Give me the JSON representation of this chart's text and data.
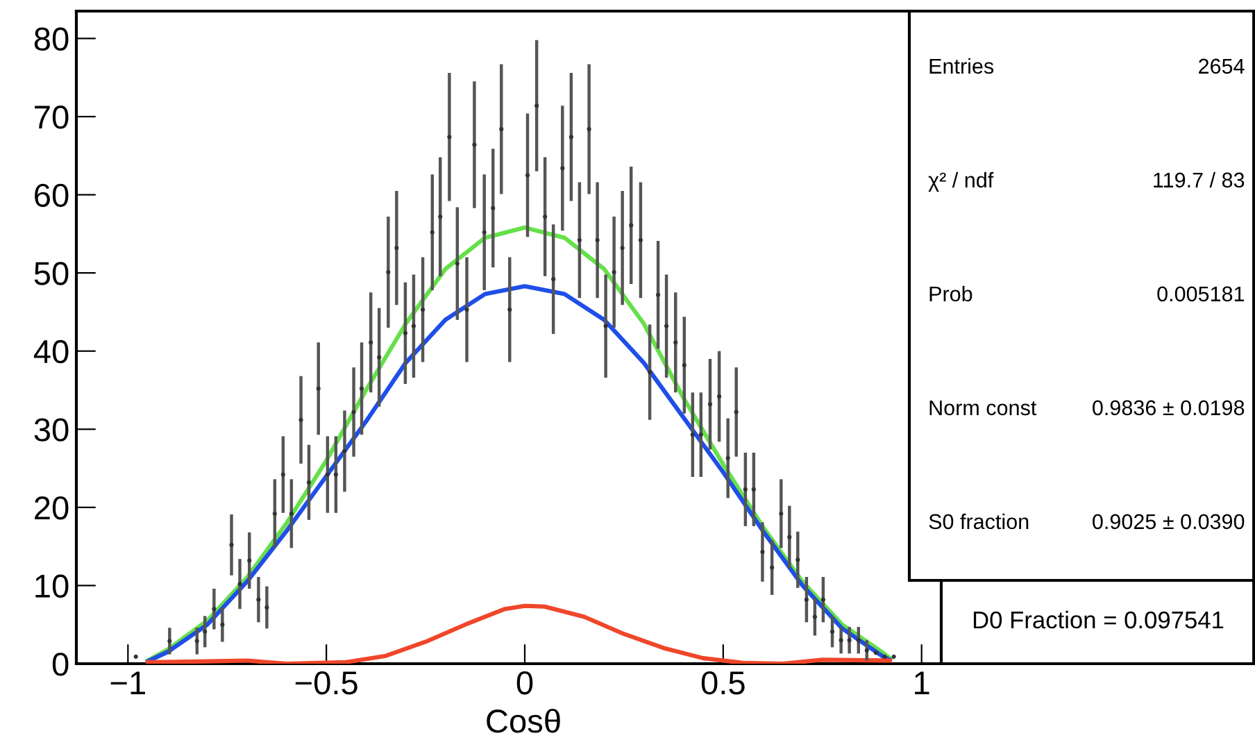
{
  "chart_data": {
    "type": "scatter",
    "xlabel": "Cosθ",
    "xlim": [
      -1.13,
      1.13
    ],
    "ylim": [
      0,
      83.5
    ],
    "xticks": [
      {
        "value": -1,
        "label": "−1"
      },
      {
        "value": -0.5,
        "label": "−0.5"
      },
      0,
      0.5,
      1
    ],
    "yticks": [
      0,
      10,
      20,
      30,
      40,
      50,
      60,
      70,
      80
    ],
    "grid": false,
    "marker": "circle",
    "series": [
      {
        "color": "#333333",
        "x": [
          -0.98,
          -0.895,
          -0.826,
          -0.806,
          -0.783,
          -0.762,
          -0.739,
          -0.718,
          -0.694,
          -0.671,
          -0.65,
          -0.63,
          -0.609,
          -0.588,
          -0.564,
          -0.544,
          -0.52,
          -0.497,
          -0.476,
          -0.454,
          -0.431,
          -0.411,
          -0.388,
          -0.367,
          -0.344,
          -0.323,
          -0.301,
          -0.28,
          -0.257,
          -0.233,
          -0.213,
          -0.19,
          -0.17,
          -0.146,
          -0.127,
          -0.102,
          -0.08,
          -0.059,
          -0.038,
          0.007,
          0.03,
          0.051,
          0.072,
          0.095,
          0.117,
          0.138,
          0.162,
          0.183,
          0.204,
          0.225,
          0.246,
          0.268,
          0.292,
          0.315,
          0.336,
          0.357,
          0.38,
          0.402,
          0.423,
          0.444,
          0.467,
          0.49,
          0.512,
          0.533,
          0.556,
          0.577,
          0.599,
          0.623,
          0.646,
          0.667,
          0.688,
          0.71,
          0.731,
          0.752,
          0.775,
          0.797,
          0.818,
          0.841,
          0.862,
          0.885,
          0.907,
          0.93
        ],
        "values": [
          0.9,
          2.9,
          2.9,
          4.1,
          7.0,
          5.0,
          15.2,
          10.2,
          13.2,
          8.2,
          7.2,
          19.2,
          24.2,
          19.2,
          31.2,
          23.2,
          35.2,
          24.2,
          24.2,
          27.2,
          32.2,
          35.2,
          41.1,
          39.2,
          50.1,
          53.2,
          42.3,
          43.2,
          45.3,
          55.2,
          57.2,
          67.4,
          51.2,
          45.3,
          66.4,
          55.2,
          58.3,
          68.4,
          45.3,
          62.5,
          71.4,
          57.2,
          49.2,
          63.4,
          67.4,
          54.2,
          68.4,
          54.2,
          43.2,
          50.1,
          53.2,
          56.1,
          54.2,
          37.3,
          47.2,
          43.2,
          41.1,
          38.2,
          29.3,
          29.3,
          33.2,
          34.2,
          26.3,
          32.2,
          22.3,
          22.3,
          14.3,
          12.3,
          19.2,
          16.2,
          13.3,
          8.2,
          6.0,
          8.2,
          4.1,
          3.0,
          3.0,
          3.0,
          1.7,
          1.4,
          0.9,
          0.9
        ],
        "errors": [
          null,
          1.7,
          1.7,
          2.0,
          2.6,
          2.2,
          3.9,
          3.2,
          3.6,
          2.9,
          2.7,
          4.4,
          4.9,
          4.4,
          5.6,
          4.8,
          5.9,
          4.9,
          4.9,
          5.2,
          5.7,
          5.9,
          6.4,
          6.3,
          7.1,
          7.3,
          6.5,
          6.6,
          6.7,
          7.4,
          7.6,
          8.2,
          7.2,
          6.7,
          8.1,
          7.4,
          7.6,
          8.3,
          6.7,
          7.9,
          8.4,
          7.6,
          7.0,
          8.0,
          8.2,
          7.4,
          8.3,
          7.4,
          6.6,
          7.1,
          7.3,
          7.5,
          7.4,
          6.1,
          6.9,
          6.6,
          6.4,
          6.2,
          5.4,
          5.4,
          5.8,
          5.8,
          5.1,
          5.7,
          4.7,
          4.7,
          3.8,
          3.5,
          4.4,
          4.0,
          3.6,
          2.9,
          2.4,
          2.9,
          2.0,
          1.7,
          1.7,
          1.7,
          1.3,
          null,
          null,
          null
        ]
      },
      {
        "type": "line",
        "color": "#66e04a",
        "marker": "none",
        "x": [
          -0.95,
          -0.9,
          -0.8,
          -0.7,
          -0.6,
          -0.5,
          -0.4,
          -0.3,
          -0.2,
          -0.1,
          0,
          0.1,
          0.2,
          0.3,
          0.4,
          0.5,
          0.6,
          0.7,
          0.8,
          0.9,
          0.92
        ],
        "values": [
          0.4,
          1.8,
          5.5,
          11,
          18,
          26,
          35,
          43.5,
          50.5,
          54.5,
          55.8,
          54.5,
          50.5,
          43.5,
          34,
          25.5,
          17.5,
          10.5,
          5,
          1.5,
          0.7
        ]
      },
      {
        "type": "line",
        "color": "#1f4ee8",
        "marker": "none",
        "x": [
          -0.95,
          -0.9,
          -0.8,
          -0.7,
          -0.6,
          -0.5,
          -0.4,
          -0.3,
          -0.2,
          -0.1,
          0,
          0.1,
          0.2,
          0.3,
          0.4,
          0.5,
          0.6,
          0.7,
          0.8,
          0.9,
          0.92
        ],
        "values": [
          0.3,
          1.5,
          5,
          10.5,
          17,
          24,
          31,
          38.5,
          44,
          47.3,
          48.3,
          47.3,
          44,
          38.5,
          31.5,
          24.5,
          17,
          10,
          4.5,
          1,
          0.5
        ]
      },
      {
        "type": "line",
        "color": "#f0462a",
        "marker": "none",
        "x": [
          -0.95,
          -0.8,
          -0.7,
          -0.6,
          -0.45,
          -0.35,
          -0.25,
          -0.15,
          -0.05,
          0,
          0.05,
          0.15,
          0.25,
          0.35,
          0.45,
          0.55,
          0.65,
          0.75,
          0.92
        ],
        "values": [
          0.2,
          0.3,
          0.4,
          0,
          0.2,
          1,
          2.8,
          5,
          7,
          7.4,
          7.3,
          6,
          3.8,
          2,
          0.7,
          0.1,
          0,
          0.5,
          0.4
        ]
      }
    ],
    "annotations": [
      "Entries",
      "2654",
      "χ² / ndf",
      "119.7 / 83",
      "Prob",
      "0.005181",
      "Norm const",
      "0.9836 ± 0.0198",
      "S0 fraction",
      "0.9025 ± 0.0390",
      "D0 Fraction = 0.097541"
    ]
  }
}
